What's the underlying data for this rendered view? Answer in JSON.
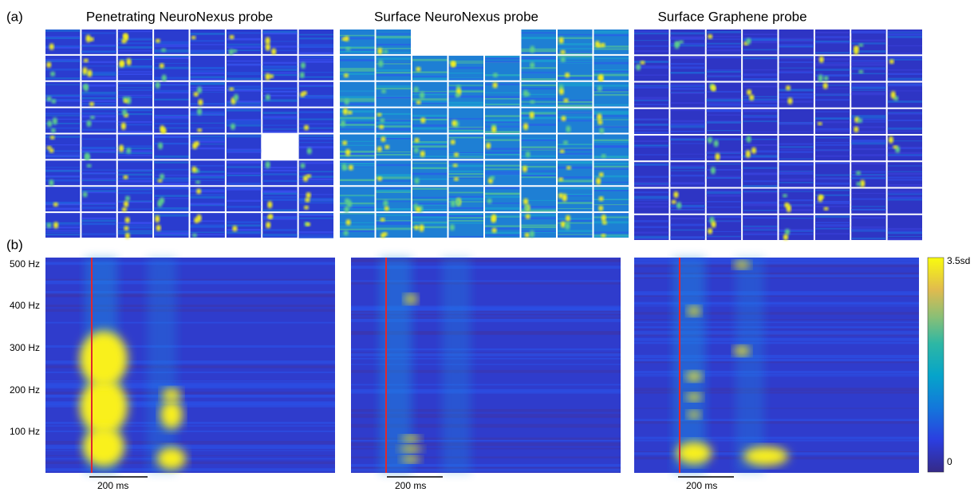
{
  "panel_a": {
    "label": "(a)",
    "titles": [
      "Penetrating NeuroNexus probe",
      "Surface NeuroNexus probe",
      "Surface Graphene probe"
    ]
  },
  "panel_b": {
    "label": "(b)",
    "yticks": [
      "500 Hz",
      "400 Hz",
      "300 Hz",
      "200 Hz",
      "100 Hz"
    ],
    "scalebar": "200 ms",
    "colorbar": {
      "top": "3.5sd",
      "bottom": "0"
    }
  }
}
